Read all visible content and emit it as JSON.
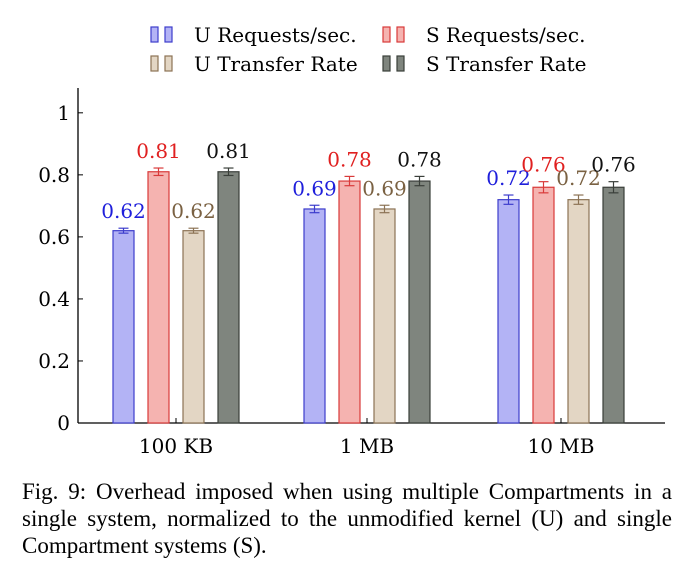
{
  "chart_data": {
    "type": "bar",
    "categories": [
      "100 KB",
      "1 MB",
      "10 MB"
    ],
    "series": [
      {
        "name": "U Requests/sec.",
        "values": [
          0.62,
          0.69,
          0.72
        ],
        "errors": [
          0.008,
          0.012,
          0.015
        ],
        "labels": [
          "0.62",
          "0.69",
          "0.72"
        ],
        "fill": "#b3b3f5",
        "stroke": "#3d3dcc",
        "label_color": "#1f1fdb"
      },
      {
        "name": "S Requests/sec.",
        "values": [
          0.81,
          0.78,
          0.76
        ],
        "errors": [
          0.012,
          0.015,
          0.018
        ],
        "labels": [
          "0.81",
          "0.78",
          "0.76"
        ],
        "fill": "#f5b3b0",
        "stroke": "#d93a3a",
        "label_color": "#e02020"
      },
      {
        "name": "U Transfer Rate",
        "values": [
          0.62,
          0.69,
          0.72
        ],
        "errors": [
          0.008,
          0.012,
          0.015
        ],
        "labels": [
          "0.62",
          "0.69",
          "0.72"
        ],
        "fill": "#e3d6c4",
        "stroke": "#8c7355",
        "label_color": "#7a6142"
      },
      {
        "name": "S Transfer Rate",
        "values": [
          0.81,
          0.78,
          0.76
        ],
        "errors": [
          0.012,
          0.015,
          0.018
        ],
        "labels": [
          "0.81",
          "0.78",
          "0.76"
        ],
        "fill": "#7f857e",
        "stroke": "#3a3f3a",
        "label_color": "#111111"
      }
    ],
    "yticks": [
      "0",
      "0.2",
      "0.4",
      "0.6",
      "0.8",
      "1"
    ],
    "ylim": [
      0,
      1.08
    ],
    "grid": false,
    "legend_position": "top"
  },
  "caption": "Fig. 9: Overhead imposed when using multiple Compartments in a single system, normalized to the unmodified kernel (U) and single Compartment systems (S)."
}
